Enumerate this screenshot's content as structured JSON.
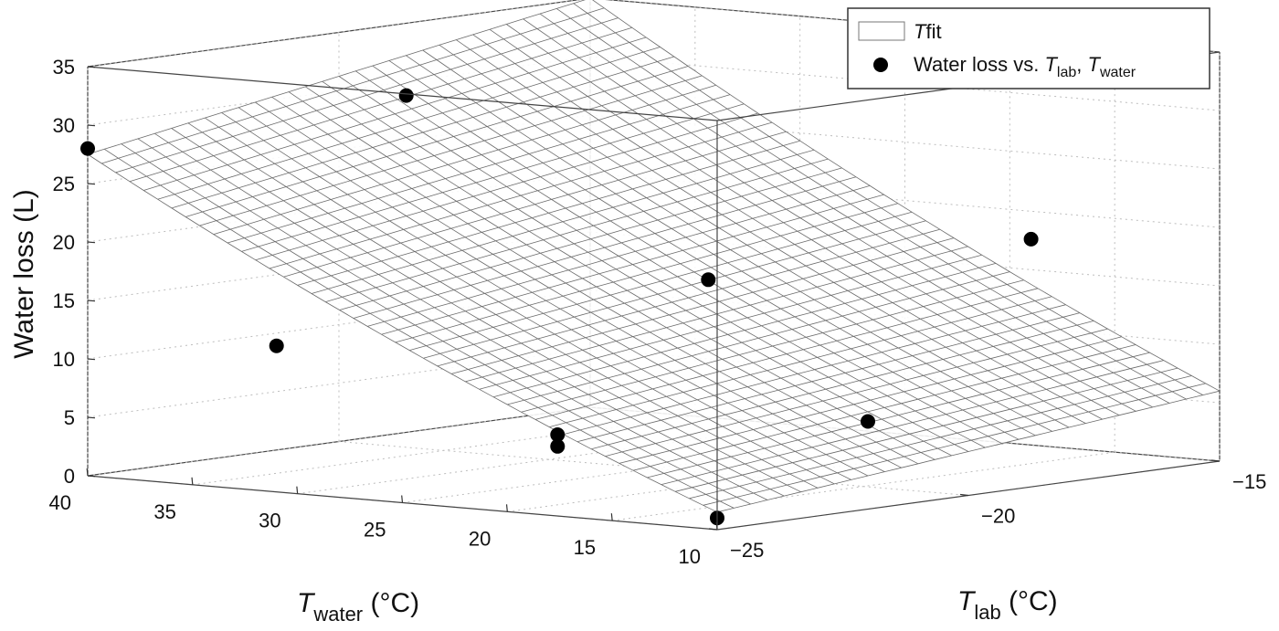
{
  "chart_data": {
    "type": "surface3d-scatter",
    "zlabel": "Water loss (L)",
    "x_axis": {
      "symbol": "T",
      "subscript": "water",
      "unit": " (°C)",
      "range": [
        10,
        40
      ],
      "ticks": [
        10,
        15,
        20,
        25,
        30,
        35,
        40
      ]
    },
    "y_axis": {
      "symbol": "T",
      "subscript": "lab",
      "unit": " (°C)",
      "range": [
        -25,
        -15
      ],
      "ticks": [
        -25,
        -20,
        -15
      ]
    },
    "z_axis": {
      "range": [
        0,
        35
      ],
      "ticks": [
        0,
        5,
        10,
        15,
        20,
        25,
        30,
        35
      ]
    },
    "grid": true,
    "legend": {
      "position": "top-right",
      "entries": [
        {
          "kind": "surface",
          "symbol": "T",
          "rest": "fit"
        },
        {
          "kind": "marker",
          "prefix": "Water loss vs. ",
          "s1": "T",
          "sub1": "lab",
          "sep": ", ",
          "s2": "T",
          "sub2": "water"
        }
      ]
    },
    "surface": {
      "description_free": true,
      "corners": {
        "x40_y-25": 27.5,
        "x10_y-25": 1.5,
        "x10_y-15": 6,
        "x40_y-15": 35
      }
    },
    "points": [
      {
        "x": 40,
        "y": -25,
        "z": 28
      },
      {
        "x": 32,
        "y": -22,
        "z": 32
      },
      {
        "x": 31,
        "y": -25,
        "z": 12.5
      },
      {
        "x": 20,
        "y": -21,
        "z": 17.5
      },
      {
        "x": 20,
        "y": -24,
        "z": 6
      },
      {
        "x": 20,
        "y": -24,
        "z": 5
      },
      {
        "x": 10,
        "y": -25,
        "z": 1
      },
      {
        "x": 13,
        "y": -17.5,
        "z": 20
      },
      {
        "x": 10,
        "y": -22,
        "z": 7.5
      }
    ]
  }
}
